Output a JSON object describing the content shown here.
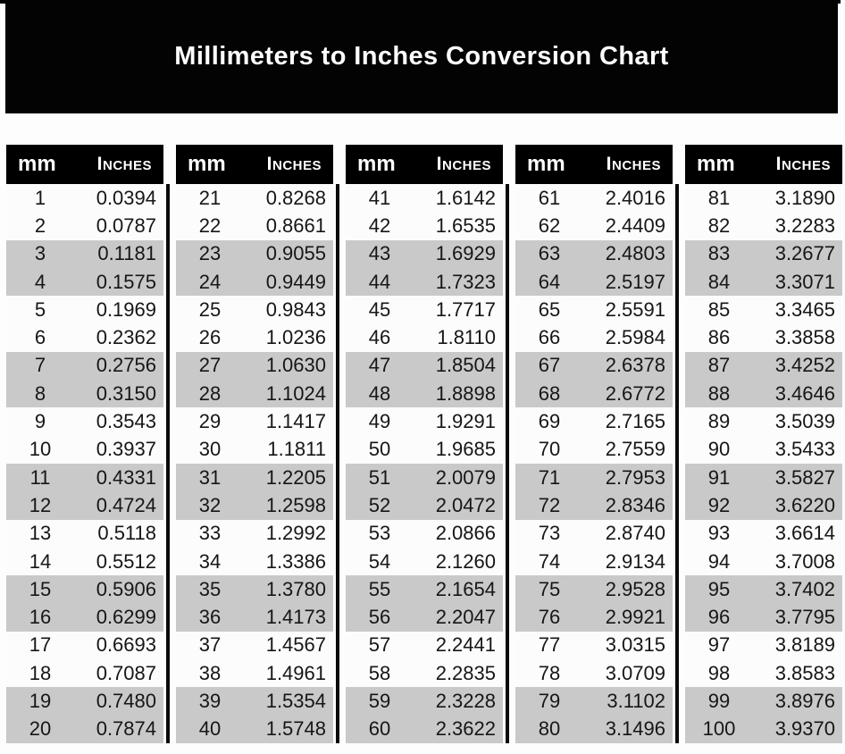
{
  "banner": {
    "title": "Millimeters to Inches Conversion Chart"
  },
  "table_headers": {
    "mm": "mm",
    "inches": "Inches"
  },
  "chart_data": {
    "type": "table",
    "title": "Millimeters to Inches Conversion Chart",
    "column_headers": [
      "mm",
      "Inches"
    ],
    "blocks": [
      {
        "mm": [
          "1",
          "2",
          "3",
          "4",
          "5",
          "6",
          "7",
          "8",
          "9",
          "10",
          "11",
          "12",
          "13",
          "14",
          "15",
          "16",
          "17",
          "18",
          "19",
          "20"
        ],
        "inches": [
          "0.0394",
          "0.0787",
          "0.1181",
          "0.1575",
          "0.1969",
          "0.2362",
          "0.2756",
          "0.3150",
          "0.3543",
          "0.3937",
          "0.4331",
          "0.4724",
          "0.5118",
          "0.5512",
          "0.5906",
          "0.6299",
          "0.6693",
          "0.7087",
          "0.7480",
          "0.7874"
        ]
      },
      {
        "mm": [
          "21",
          "22",
          "23",
          "24",
          "25",
          "26",
          "27",
          "28",
          "29",
          "30",
          "31",
          "32",
          "33",
          "34",
          "35",
          "36",
          "37",
          "38",
          "39",
          "40"
        ],
        "inches": [
          "0.8268",
          "0.8661",
          "0.9055",
          "0.9449",
          "0.9843",
          "1.0236",
          "1.0630",
          "1.1024",
          "1.1417",
          "1.1811",
          "1.2205",
          "1.2598",
          "1.2992",
          "1.3386",
          "1.3780",
          "1.4173",
          "1.4567",
          "1.4961",
          "1.5354",
          "1.5748"
        ]
      },
      {
        "mm": [
          "41",
          "42",
          "43",
          "44",
          "45",
          "46",
          "47",
          "48",
          "49",
          "50",
          "51",
          "52",
          "53",
          "54",
          "55",
          "56",
          "57",
          "58",
          "59",
          "60"
        ],
        "inches": [
          "1.6142",
          "1.6535",
          "1.6929",
          "1.7323",
          "1.7717",
          "1.8110",
          "1.8504",
          "1.8898",
          "1.9291",
          "1.9685",
          "2.0079",
          "2.0472",
          "2.0866",
          "2.1260",
          "2.1654",
          "2.2047",
          "2.2441",
          "2.2835",
          "2.3228",
          "2.3622"
        ]
      },
      {
        "mm": [
          "61",
          "62",
          "63",
          "64",
          "65",
          "66",
          "67",
          "68",
          "69",
          "70",
          "71",
          "72",
          "73",
          "74",
          "75",
          "76",
          "77",
          "78",
          "79",
          "80"
        ],
        "inches": [
          "2.4016",
          "2.4409",
          "2.4803",
          "2.5197",
          "2.5591",
          "2.5984",
          "2.6378",
          "2.6772",
          "2.7165",
          "2.7559",
          "2.7953",
          "2.8346",
          "2.8740",
          "2.9134",
          "2.9528",
          "2.9921",
          "3.0315",
          "3.0709",
          "3.1102",
          "3.1496"
        ]
      },
      {
        "mm": [
          "81",
          "82",
          "83",
          "84",
          "85",
          "86",
          "87",
          "88",
          "89",
          "90",
          "91",
          "92",
          "93",
          "94",
          "95",
          "96",
          "97",
          "98",
          "99",
          "100"
        ],
        "inches": [
          "3.1890",
          "3.2283",
          "3.2677",
          "3.3071",
          "3.3465",
          "3.3858",
          "3.4252",
          "3.4646",
          "3.5039",
          "3.5433",
          "3.5827",
          "3.6220",
          "3.6614",
          "3.7008",
          "3.7402",
          "3.7795",
          "3.8189",
          "3.8583",
          "3.8976",
          "3.9370"
        ]
      }
    ]
  },
  "colors": {
    "banner_background": "#030303",
    "banner_text": "#ffffff",
    "header_background": "#000000",
    "header_text": "#ffffff",
    "row_band": "#c9c9c9",
    "row_plain": "#fcfcfc",
    "cell_text": "#161616",
    "divider": "#0a0a0a"
  }
}
